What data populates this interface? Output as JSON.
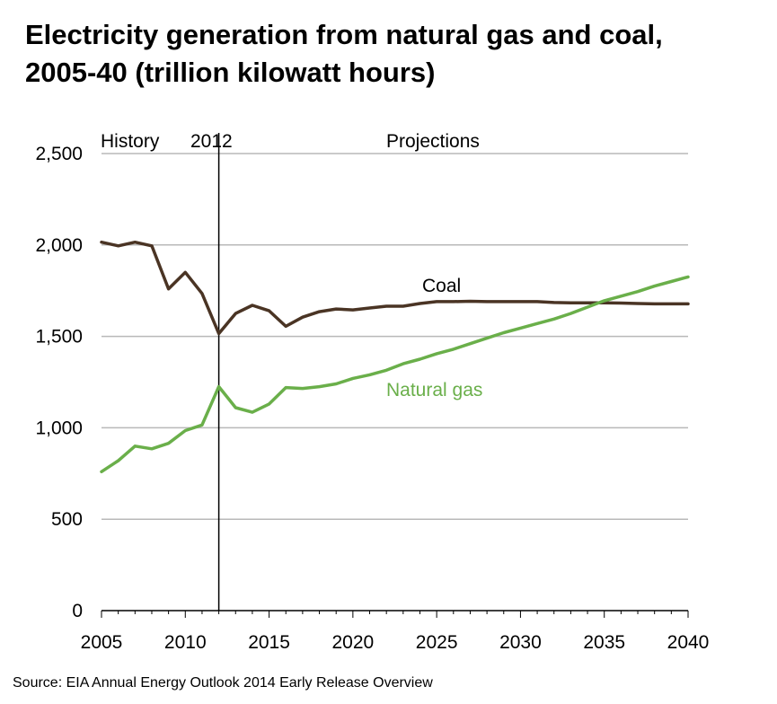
{
  "title_line1": "Electricity generation from natural gas and coal,",
  "title_line2": "2005-40 (trillion kilowatt hours)",
  "source": "Source: EIA Annual Energy Outlook 2014 Early Release Overview",
  "colors": {
    "coal": "#4a3424",
    "natural_gas": "#6aaf4a",
    "grid": "#b8b8b8",
    "divider": "#000000"
  },
  "chart_data": {
    "type": "line",
    "title": "Electricity generation from natural gas and coal, 2005-40 (trillion kilowatt hours)",
    "xlim": [
      2005,
      2040
    ],
    "ylim": [
      0,
      2500
    ],
    "x_ticks": [
      "2005",
      "2010",
      "2015",
      "2020",
      "2025",
      "2030",
      "2035",
      "2040"
    ],
    "x_tick_values": [
      2005,
      2010,
      2015,
      2020,
      2025,
      2030,
      2035,
      2040
    ],
    "y_ticks": [
      "0",
      "500",
      "1,000",
      "1,500",
      "2,000",
      "2,500"
    ],
    "y_tick_values": [
      0,
      500,
      1000,
      1500,
      2000,
      2500
    ],
    "grid": "horizontal",
    "annotations": {
      "history": "History",
      "year_marker": "2012",
      "projections": "Projections"
    },
    "divider_year": 2012,
    "x": [
      2005,
      2006,
      2007,
      2008,
      2009,
      2010,
      2011,
      2012,
      2013,
      2014,
      2015,
      2016,
      2017,
      2018,
      2019,
      2020,
      2021,
      2022,
      2023,
      2024,
      2025,
      2026,
      2027,
      2028,
      2029,
      2030,
      2031,
      2032,
      2033,
      2034,
      2035,
      2036,
      2037,
      2038,
      2039,
      2040
    ],
    "series": [
      {
        "name": "Coal",
        "color": "#4a3424",
        "values": [
          2015,
          1995,
          2015,
          1995,
          1760,
          1850,
          1735,
          1515,
          1625,
          1670,
          1640,
          1555,
          1605,
          1635,
          1650,
          1645,
          1655,
          1665,
          1665,
          1680,
          1690,
          1690,
          1692,
          1690,
          1690,
          1690,
          1690,
          1685,
          1683,
          1683,
          1683,
          1682,
          1680,
          1678,
          1678,
          1678
        ]
      },
      {
        "name": "Natural gas",
        "color": "#6aaf4a",
        "values": [
          760,
          820,
          900,
          885,
          915,
          985,
          1015,
          1225,
          1110,
          1085,
          1130,
          1220,
          1215,
          1225,
          1240,
          1270,
          1290,
          1315,
          1350,
          1375,
          1405,
          1430,
          1460,
          1490,
          1520,
          1545,
          1570,
          1595,
          1625,
          1660,
          1695,
          1720,
          1745,
          1775,
          1800,
          1825
        ]
      }
    ]
  }
}
